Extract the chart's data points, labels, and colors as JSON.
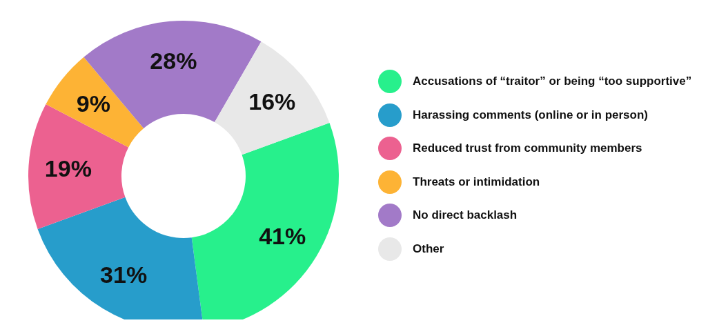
{
  "chart_data": {
    "type": "donut",
    "categories": [
      "Accusations of “traitor” or being “too supportive”",
      "Harassing comments (online or in person)",
      "Reduced trust from community members",
      "Threats or intimidation",
      "No direct backlash",
      "Other"
    ],
    "values": [
      41,
      31,
      19,
      9,
      28,
      16
    ],
    "colors": [
      "#27f08c",
      "#279dcb",
      "#ec6190",
      "#fdb335",
      "#a27ac8",
      "#e8e8e8"
    ],
    "value_labels": [
      "41%",
      "31%",
      "19%",
      "9%",
      "28%",
      "16%"
    ],
    "legend": "right"
  }
}
